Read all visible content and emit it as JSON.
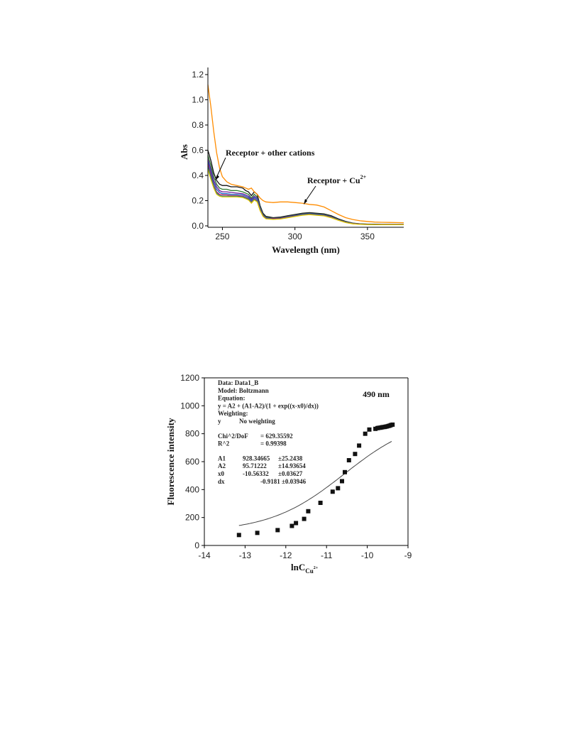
{
  "chart_data": [
    {
      "type": "line",
      "xlabel": "Wavelength (nm)",
      "ylabel": "Abs",
      "xlim": [
        240,
        375
      ],
      "ylim": [
        0.0,
        1.2
      ],
      "x_ticks": [
        "250",
        "300",
        "350"
      ],
      "y_ticks": [
        "0.0",
        "0.2",
        "0.4",
        "0.6",
        "0.8",
        "1.0",
        "1.2"
      ],
      "annotations": [
        {
          "text": "Receptor + other cations",
          "points_to": [
            245,
            0.38
          ]
        },
        {
          "text": "Receptor + Cu",
          "superscript": "2+",
          "points_to": [
            290,
            0.19
          ]
        }
      ],
      "series": [
        {
          "color": "#ff8c00",
          "x": [
            240,
            242,
            244,
            246,
            248,
            250,
            253,
            256,
            260,
            264,
            266,
            268,
            270,
            272,
            274,
            276,
            278,
            280,
            285,
            290,
            295,
            300,
            305,
            310,
            315,
            320,
            325,
            330,
            335,
            340,
            345,
            350,
            355,
            360,
            365,
            370,
            375
          ],
          "values": [
            1.12,
            0.95,
            0.75,
            0.58,
            0.46,
            0.39,
            0.35,
            0.33,
            0.32,
            0.31,
            0.3,
            0.29,
            0.3,
            0.27,
            0.25,
            0.22,
            0.2,
            0.19,
            0.185,
            0.19,
            0.19,
            0.185,
            0.18,
            0.17,
            0.165,
            0.15,
            0.12,
            0.09,
            0.065,
            0.05,
            0.04,
            0.035,
            0.03,
            0.028,
            0.027,
            0.026,
            0.025
          ]
        },
        {
          "color": "#111111",
          "x": [
            240,
            242,
            244,
            246,
            248,
            250,
            253,
            256,
            260,
            264,
            266,
            268,
            270,
            272,
            274,
            276,
            278,
            280,
            285,
            290,
            295,
            300,
            305,
            310,
            315,
            320,
            325,
            330,
            335,
            340,
            345,
            350,
            355,
            360,
            365,
            370,
            375
          ],
          "values": [
            0.6,
            0.52,
            0.42,
            0.36,
            0.33,
            0.32,
            0.32,
            0.31,
            0.31,
            0.3,
            0.28,
            0.27,
            0.24,
            0.27,
            0.25,
            0.16,
            0.1,
            0.075,
            0.065,
            0.07,
            0.08,
            0.09,
            0.1,
            0.105,
            0.1,
            0.095,
            0.08,
            0.055,
            0.035,
            0.022,
            0.016,
            0.014,
            0.013,
            0.012,
            0.012,
            0.012,
            0.012
          ]
        },
        {
          "color": "#2f7d32",
          "x": [
            240,
            242,
            244,
            246,
            248,
            250,
            253,
            256,
            260,
            264,
            266,
            268,
            270,
            272,
            274,
            276,
            278,
            280,
            285,
            290,
            295,
            300,
            305,
            310,
            315,
            320,
            325,
            330,
            335,
            340,
            345,
            350,
            355,
            360,
            365,
            370,
            375
          ],
          "values": [
            0.56,
            0.48,
            0.39,
            0.33,
            0.3,
            0.29,
            0.29,
            0.28,
            0.28,
            0.27,
            0.26,
            0.25,
            0.22,
            0.25,
            0.23,
            0.15,
            0.09,
            0.07,
            0.06,
            0.065,
            0.075,
            0.085,
            0.095,
            0.1,
            0.095,
            0.09,
            0.075,
            0.05,
            0.032,
            0.02,
            0.015,
            0.013,
            0.012,
            0.011,
            0.011,
            0.011,
            0.011
          ]
        },
        {
          "color": "#6a1b9a",
          "x": [
            240,
            242,
            244,
            246,
            248,
            250,
            253,
            256,
            260,
            264,
            266,
            268,
            270,
            272,
            274,
            276,
            278,
            280,
            285,
            290,
            295,
            300,
            305,
            310,
            315,
            320,
            325,
            330,
            335,
            340,
            345,
            350,
            355,
            360,
            365,
            370,
            375
          ],
          "values": [
            0.53,
            0.45,
            0.36,
            0.31,
            0.28,
            0.27,
            0.27,
            0.265,
            0.26,
            0.255,
            0.245,
            0.235,
            0.21,
            0.235,
            0.22,
            0.14,
            0.085,
            0.065,
            0.058,
            0.062,
            0.072,
            0.082,
            0.092,
            0.097,
            0.092,
            0.087,
            0.072,
            0.048,
            0.03,
            0.019,
            0.014,
            0.012,
            0.011,
            0.011,
            0.011,
            0.011,
            0.011
          ]
        },
        {
          "color": "#1565c0",
          "x": [
            240,
            242,
            244,
            246,
            248,
            250,
            253,
            256,
            260,
            264,
            266,
            268,
            270,
            272,
            274,
            276,
            278,
            280,
            285,
            290,
            295,
            300,
            305,
            310,
            315,
            320,
            325,
            330,
            335,
            340,
            345,
            350,
            355,
            360,
            365,
            370,
            375
          ],
          "values": [
            0.51,
            0.43,
            0.34,
            0.29,
            0.265,
            0.255,
            0.255,
            0.25,
            0.25,
            0.245,
            0.235,
            0.225,
            0.2,
            0.225,
            0.21,
            0.135,
            0.082,
            0.062,
            0.056,
            0.06,
            0.07,
            0.08,
            0.09,
            0.095,
            0.09,
            0.085,
            0.07,
            0.047,
            0.029,
            0.018,
            0.013,
            0.011,
            0.01,
            0.01,
            0.01,
            0.01,
            0.01
          ]
        },
        {
          "color": "#c2185b",
          "x": [
            240,
            242,
            244,
            246,
            248,
            250,
            253,
            256,
            260,
            264,
            266,
            268,
            270,
            272,
            274,
            276,
            278,
            280,
            285,
            290,
            295,
            300,
            305,
            310,
            315,
            320,
            325,
            330,
            335,
            340,
            345,
            350,
            355,
            360,
            365,
            370,
            375
          ],
          "values": [
            0.49,
            0.41,
            0.32,
            0.27,
            0.25,
            0.245,
            0.245,
            0.24,
            0.24,
            0.235,
            0.225,
            0.215,
            0.19,
            0.215,
            0.2,
            0.13,
            0.08,
            0.06,
            0.055,
            0.058,
            0.068,
            0.078,
            0.088,
            0.093,
            0.088,
            0.083,
            0.068,
            0.046,
            0.028,
            0.018,
            0.013,
            0.011,
            0.01,
            0.01,
            0.01,
            0.01,
            0.01
          ]
        },
        {
          "color": "#00838f",
          "x": [
            240,
            242,
            244,
            246,
            248,
            250,
            253,
            256,
            260,
            264,
            266,
            268,
            270,
            272,
            274,
            276,
            278,
            280,
            285,
            290,
            295,
            300,
            305,
            310,
            315,
            320,
            325,
            330,
            335,
            340,
            345,
            350,
            355,
            360,
            365,
            370,
            375
          ],
          "values": [
            0.47,
            0.39,
            0.31,
            0.26,
            0.24,
            0.235,
            0.235,
            0.235,
            0.235,
            0.23,
            0.22,
            0.21,
            0.185,
            0.21,
            0.195,
            0.125,
            0.078,
            0.058,
            0.053,
            0.056,
            0.066,
            0.076,
            0.086,
            0.091,
            0.086,
            0.081,
            0.066,
            0.045,
            0.027,
            0.017,
            0.012,
            0.01,
            0.009,
            0.009,
            0.009,
            0.009,
            0.009
          ]
        },
        {
          "color": "#e6c400",
          "x": [
            240,
            242,
            244,
            246,
            248,
            250,
            253,
            256,
            260,
            264,
            266,
            268,
            270,
            272,
            274,
            276,
            278,
            280,
            285,
            290,
            295,
            300,
            305,
            310,
            315,
            320,
            325,
            330,
            335,
            340,
            345,
            350,
            355,
            360,
            365,
            370,
            375
          ],
          "values": [
            0.45,
            0.37,
            0.3,
            0.25,
            0.235,
            0.23,
            0.23,
            0.23,
            0.23,
            0.225,
            0.215,
            0.205,
            0.18,
            0.205,
            0.19,
            0.12,
            0.075,
            0.056,
            0.051,
            0.054,
            0.064,
            0.074,
            0.084,
            0.089,
            0.084,
            0.079,
            0.064,
            0.044,
            0.026,
            0.016,
            0.012,
            0.01,
            0.009,
            0.009,
            0.009,
            0.009,
            0.009
          ]
        }
      ]
    },
    {
      "type": "scatter",
      "xlabel": "lnC",
      "xlabel_subscript": "Cu",
      "xlabel_subscript_superscript": "2+",
      "ylabel": "Fluorescence intensity",
      "xlim": [
        -14,
        -9
      ],
      "ylim": [
        0,
        1200
      ],
      "x_ticks": [
        "-14",
        "-13",
        "-12",
        "-11",
        "-10",
        "-9"
      ],
      "y_ticks": [
        "0",
        "200",
        "400",
        "600",
        "800",
        "1000",
        "1200"
      ],
      "label": "490 nm",
      "fit_box": [
        [
          "Data: Data1_B"
        ],
        [
          "Model: Boltzmann"
        ],
        [
          "Equation:"
        ],
        [
          "y = A2 + (A1-A2)/(1 + exp((x-x0)/dx))"
        ],
        [
          "Weighting:"
        ],
        [
          "y",
          "No weighting"
        ],
        [
          ""
        ],
        [
          "Chi^2/DoF",
          "= 629.35592"
        ],
        [
          "R^2",
          "= 0.99398"
        ],
        [
          ""
        ],
        [
          "A1",
          "928.34665",
          "±25.2438"
        ],
        [
          "A2",
          "95.71222",
          "±14.93654"
        ],
        [
          "x0",
          "-10.56332",
          "±0.03627"
        ],
        [
          "dx",
          "-0.9181 ±0.03946"
        ]
      ],
      "fit": {
        "model": "Boltzmann",
        "A1": 928.34665,
        "A2": 95.71222,
        "x0": -10.56332,
        "dx": -0.9181
      },
      "x": [
        -13.15,
        -12.7,
        -12.2,
        -11.85,
        -11.75,
        -11.55,
        -11.45,
        -11.15,
        -10.85,
        -10.72,
        -10.62,
        -10.55,
        -10.45,
        -10.3,
        -10.2,
        -10.05,
        -9.95,
        -9.8,
        -9.75,
        -9.72,
        -9.68,
        -9.65,
        -9.62,
        -9.58,
        -9.55,
        -9.52,
        -9.48,
        -9.45,
        -9.42,
        -9.38
      ],
      "values": [
        75,
        90,
        110,
        140,
        160,
        190,
        245,
        305,
        385,
        410,
        460,
        525,
        610,
        655,
        715,
        800,
        830,
        835,
        840,
        842,
        843,
        845,
        847,
        848,
        850,
        852,
        855,
        858,
        862,
        865
      ]
    }
  ]
}
